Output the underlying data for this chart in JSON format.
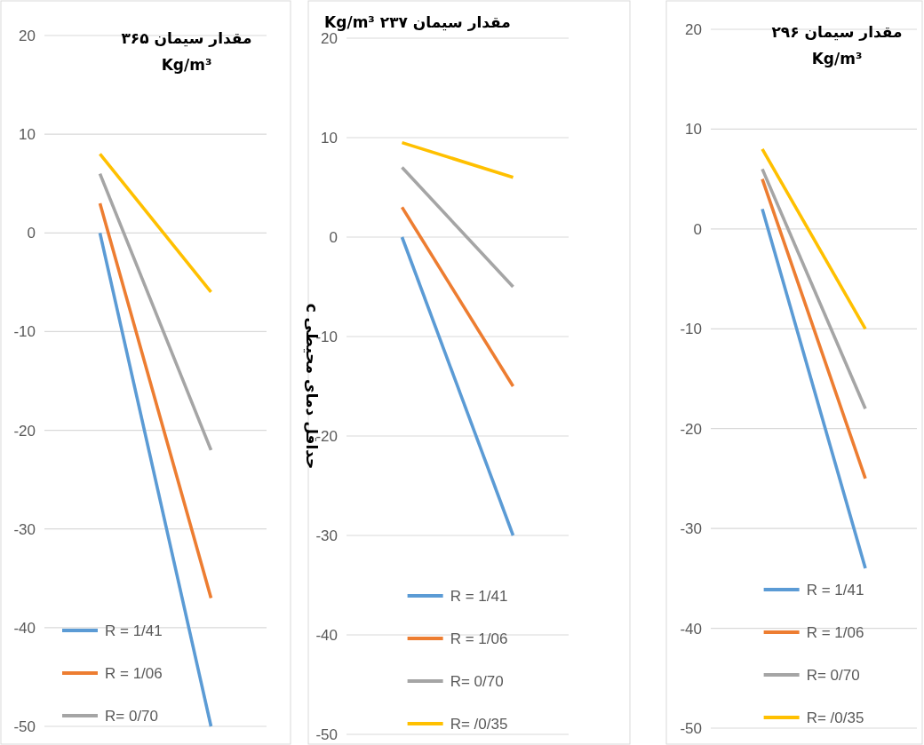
{
  "chart_data": [
    {
      "type": "line",
      "title": "مقدار سیمان ۳۶۵ Kg/m³",
      "categories": [
        null,
        null
      ],
      "ylim": [
        -50,
        20
      ],
      "yticks": [
        -50,
        -40,
        -30,
        -20,
        -10,
        0,
        10,
        20
      ],
      "grid": "y",
      "legend": "bottom left",
      "series": [
        {
          "name": "R = 1/41",
          "color": "#5b9bd5",
          "values": [
            0,
            -50
          ]
        },
        {
          "name": "R = 1/06",
          "color": "#ed7d31",
          "values": [
            3,
            -37
          ]
        },
        {
          "name": "R= 0/70",
          "color": "#a5a5a5",
          "values": [
            6,
            -22
          ]
        },
        {
          "color": "#ffc000",
          "values": [
            8,
            -6
          ]
        }
      ]
    },
    {
      "type": "line",
      "title": "مقدار سیمان ۲۳۷ Kg/m³",
      "ylabel": "حداقل دمای محیطی c",
      "categories": [
        null,
        null
      ],
      "ylim": [
        -50,
        20
      ],
      "yticks": [
        -50,
        -40,
        -30,
        -20,
        -10,
        0,
        10,
        20
      ],
      "grid": "y",
      "legend": "bottom",
      "series": [
        {
          "name": "R = 1/41",
          "color": "#5b9bd5",
          "values": [
            0,
            -30
          ]
        },
        {
          "name": "R = 1/06",
          "color": "#ed7d31",
          "values": [
            3,
            -15
          ]
        },
        {
          "name": "R= 0/70",
          "color": "#a5a5a5",
          "values": [
            7,
            -5
          ]
        },
        {
          "name": "R= /0/35",
          "color": "#ffc000",
          "values": [
            9.5,
            6
          ]
        }
      ]
    },
    {
      "type": "line",
      "title": "مقدار سیمان ۲۹۶ Kg/m³",
      "categories": [
        null,
        null
      ],
      "ylim": [
        -50,
        20
      ],
      "yticks": [
        -50,
        -40,
        -30,
        -20,
        -10,
        0,
        10,
        20
      ],
      "grid": "y",
      "legend": "bottom",
      "series": [
        {
          "name": "R = 1/41",
          "color": "#5b9bd5",
          "values": [
            2,
            -34
          ]
        },
        {
          "name": "R = 1/06",
          "color": "#ed7d31",
          "values": [
            5,
            -25
          ]
        },
        {
          "name": "R= 0/70",
          "color": "#a5a5a5",
          "values": [
            6,
            -18
          ]
        },
        {
          "name": "R= /0/35",
          "color": "#ffc000",
          "values": [
            8,
            -10
          ]
        }
      ]
    }
  ]
}
